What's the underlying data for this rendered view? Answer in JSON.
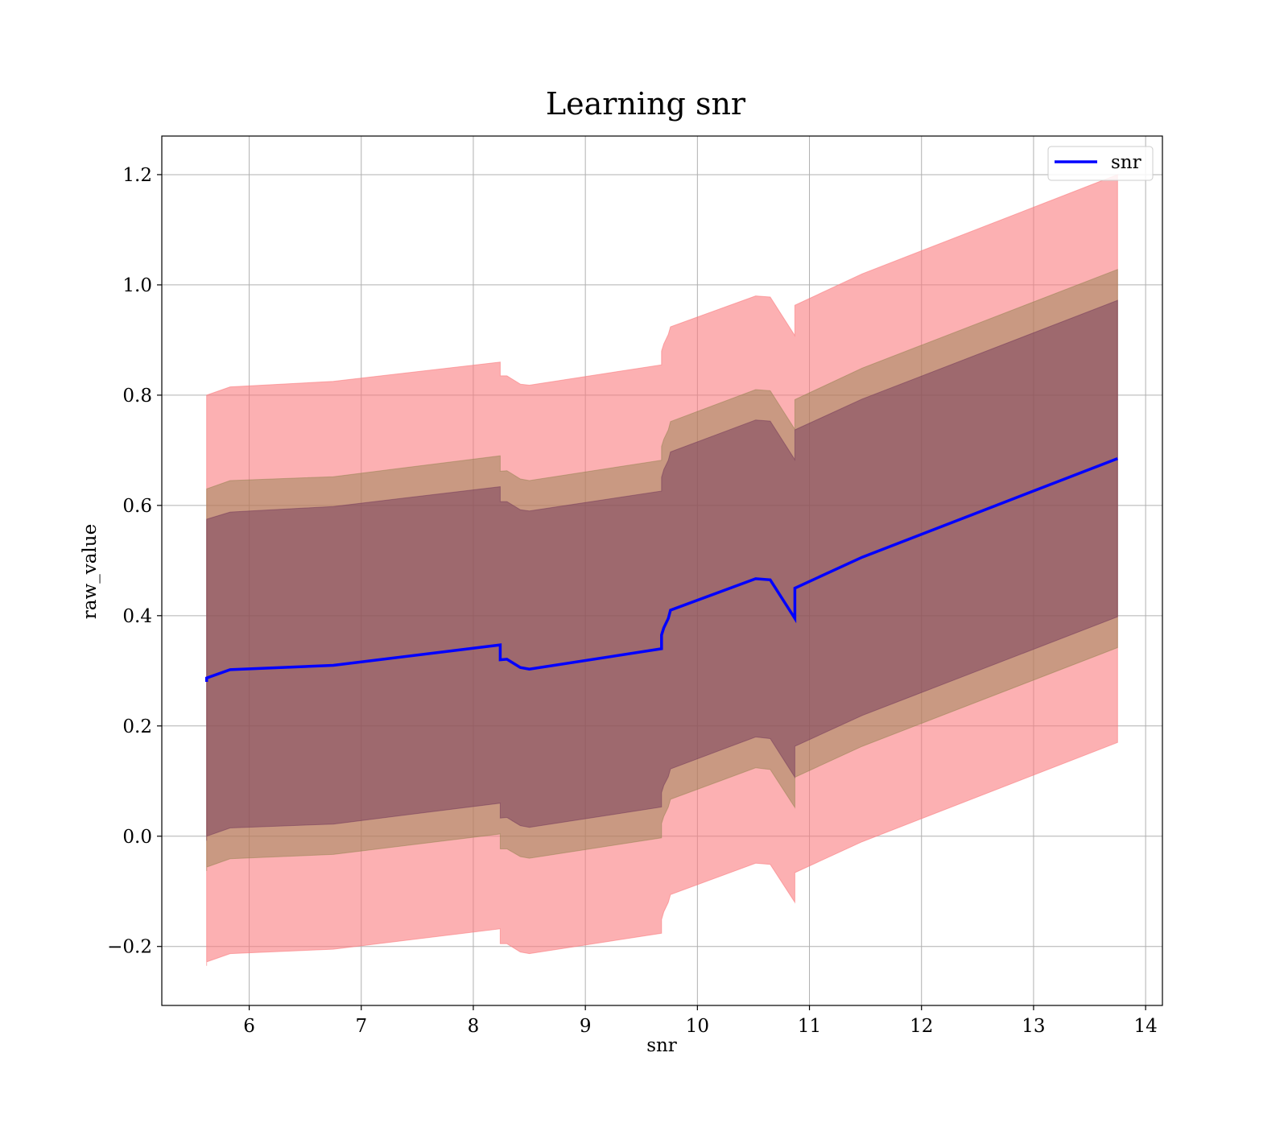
{
  "chart_data": {
    "type": "line",
    "title": "Learning snr",
    "xlabel": "snr",
    "ylabel": "raw_value",
    "xlim": [
      5.22,
      14.15
    ],
    "ylim": [
      -0.307,
      1.27
    ],
    "xticks": [
      6,
      7,
      8,
      9,
      10,
      11,
      12,
      13,
      14
    ],
    "yticks": [
      -0.2,
      0.0,
      0.2,
      0.4,
      0.6,
      0.8,
      1.0,
      1.2
    ],
    "ytick_labels": [
      "−0.2",
      "0.0",
      "0.2",
      "0.4",
      "0.6",
      "0.8",
      "1.0",
      "1.2"
    ],
    "grid": true,
    "legend_position": "top-right",
    "series": [
      {
        "name": "snr",
        "color": "#0000ff",
        "x": [
          5.62,
          5.62,
          5.83,
          6.75,
          8.24,
          8.24,
          8.3,
          8.42,
          8.5,
          9.68,
          9.68,
          9.7,
          9.74,
          9.76,
          10.52,
          10.65,
          10.87,
          10.87,
          11.47,
          13.75
        ],
        "values": [
          0.28,
          0.287,
          0.302,
          0.31,
          0.347,
          0.32,
          0.321,
          0.306,
          0.303,
          0.34,
          0.365,
          0.378,
          0.395,
          0.41,
          0.467,
          0.465,
          0.395,
          0.45,
          0.506,
          0.685
        ]
      }
    ],
    "bands": [
      {
        "color": "#fa7b7f",
        "opacity": 0.6,
        "upper": [
          0.8,
          0.8,
          0.815,
          0.825,
          0.86,
          0.835,
          0.835,
          0.82,
          0.818,
          0.855,
          0.88,
          0.893,
          0.91,
          0.924,
          0.98,
          0.978,
          0.908,
          0.963,
          1.02,
          1.2
        ],
        "lower": [
          -0.235,
          -0.228,
          -0.213,
          -0.205,
          -0.168,
          -0.195,
          -0.195,
          -0.21,
          -0.213,
          -0.176,
          -0.151,
          -0.137,
          -0.12,
          -0.106,
          -0.049,
          -0.051,
          -0.12,
          -0.066,
          -0.01,
          0.17
        ]
      },
      {
        "color": "#8c7f48",
        "opacity": 0.45,
        "upper": [
          0.63,
          0.63,
          0.645,
          0.652,
          0.69,
          0.662,
          0.663,
          0.648,
          0.645,
          0.682,
          0.707,
          0.72,
          0.737,
          0.752,
          0.81,
          0.808,
          0.738,
          0.792,
          0.849,
          1.028
        ],
        "lower": [
          -0.063,
          -0.056,
          -0.041,
          -0.033,
          0.004,
          -0.023,
          -0.023,
          -0.037,
          -0.04,
          -0.003,
          0.023,
          0.036,
          0.053,
          0.067,
          0.124,
          0.121,
          0.052,
          0.107,
          0.163,
          0.342
        ]
      },
      {
        "color": "#6b2e57",
        "opacity": 0.45,
        "upper": [
          0.575,
          0.575,
          0.588,
          0.598,
          0.634,
          0.607,
          0.607,
          0.592,
          0.59,
          0.626,
          0.651,
          0.665,
          0.682,
          0.697,
          0.755,
          0.753,
          0.683,
          0.737,
          0.793,
          0.972
        ],
        "lower": [
          -0.008,
          0.0,
          0.015,
          0.022,
          0.06,
          0.033,
          0.034,
          0.019,
          0.016,
          0.053,
          0.079,
          0.092,
          0.108,
          0.122,
          0.18,
          0.177,
          0.107,
          0.163,
          0.219,
          0.398
        ]
      }
    ]
  }
}
